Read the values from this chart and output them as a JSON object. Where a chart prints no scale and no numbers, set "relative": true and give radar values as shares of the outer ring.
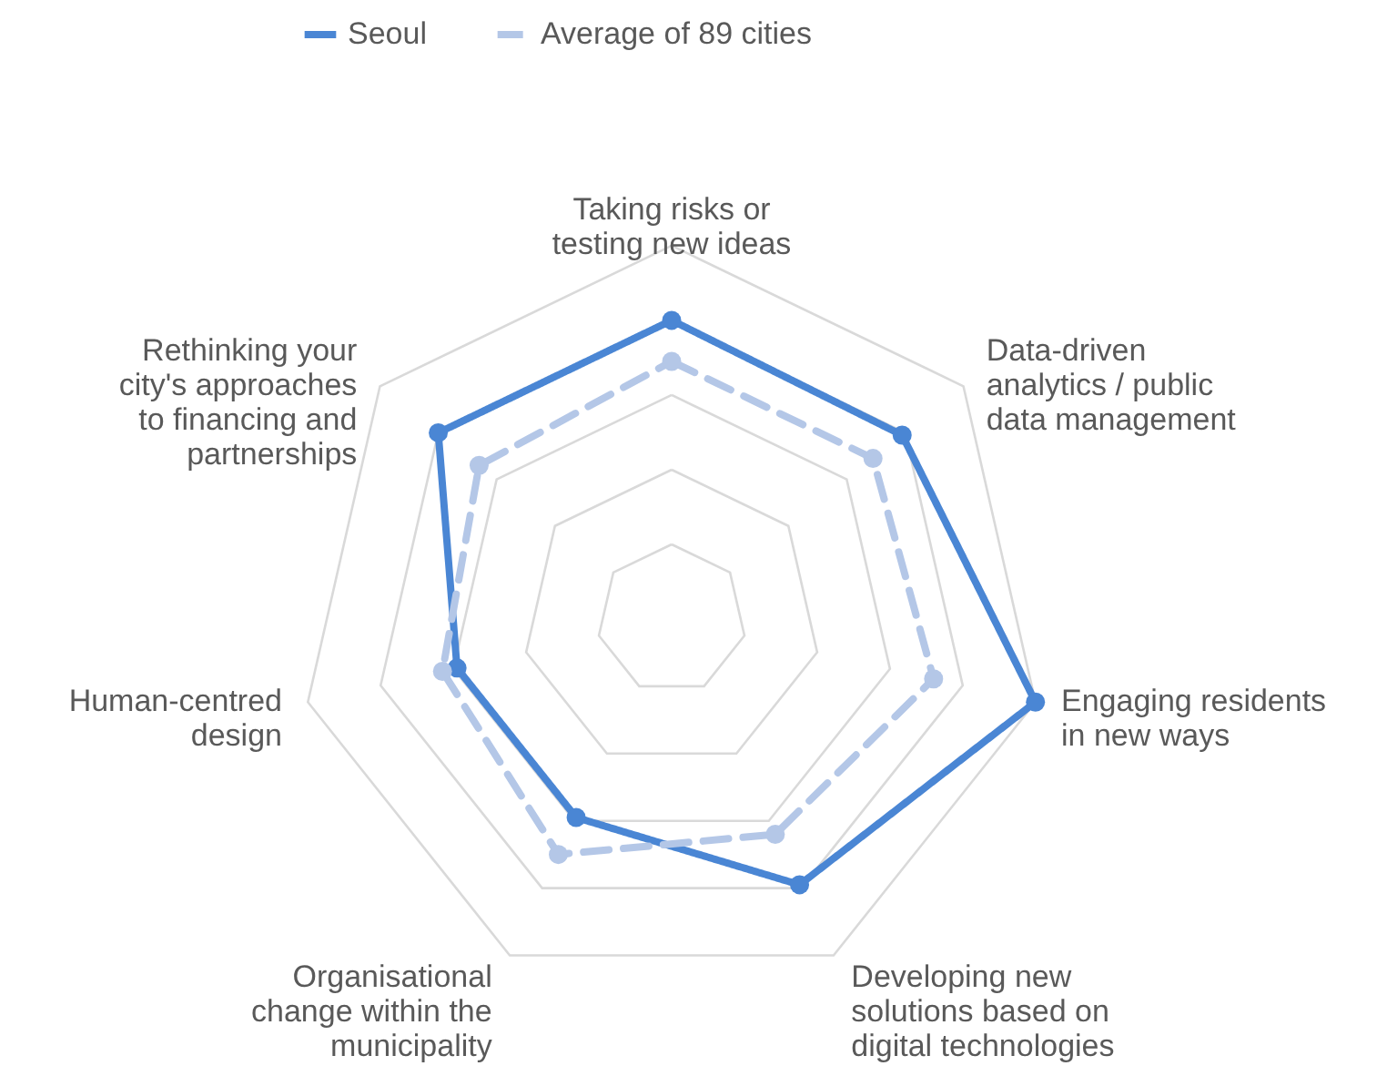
{
  "chart_data": {
    "type": "radar",
    "relative": true,
    "categories": [
      "Taking risks or testing new ideas",
      "Data-driven analytics / public data management",
      "Engaging residents in new ways",
      "Developing new solutions based on digital technologies",
      "Organisational change within the municipality",
      "Human-centred design",
      "Rethinking your city's approaches to financing and partnerships"
    ],
    "series": [
      {
        "name": "Seoul",
        "color": "#4a86d4",
        "values": [
          0.8,
          0.79,
          1.0,
          0.79,
          0.59,
          0.59,
          0.8
        ],
        "line_style": "solid"
      },
      {
        "name": "Average of 89 cities",
        "color": "#b4c7e7",
        "values": [
          0.69,
          0.69,
          0.72,
          0.64,
          0.7,
          0.63,
          0.66
        ],
        "line_style": "dashed"
      }
    ],
    "marker": "circle",
    "grid": true,
    "legend": "top"
  }
}
